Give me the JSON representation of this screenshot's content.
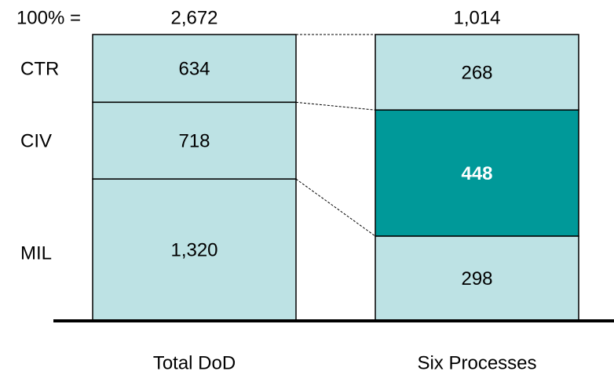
{
  "chart_data": {
    "type": "stacked-percent-bar",
    "categories": [
      "Total DoD",
      "Six Processes"
    ],
    "totals": {
      "label": "100% =",
      "values": [
        2672,
        1014
      ],
      "value_labels": [
        "2,672",
        "1,014"
      ]
    },
    "series": [
      {
        "name": "CTR",
        "color": "#bde2e4",
        "values": [
          634,
          268
        ]
      },
      {
        "name": "CIV",
        "color": "#bde2e4",
        "colors": [
          "#bde2e4",
          "#009999"
        ],
        "label_colors": [
          "#000000",
          "#ffffff"
        ],
        "values": [
          718,
          448
        ]
      },
      {
        "name": "MIL",
        "color": "#bde2e4",
        "values": [
          1320,
          298
        ],
        "value_labels": [
          "1,320",
          "298"
        ]
      }
    ],
    "connectors": true
  }
}
